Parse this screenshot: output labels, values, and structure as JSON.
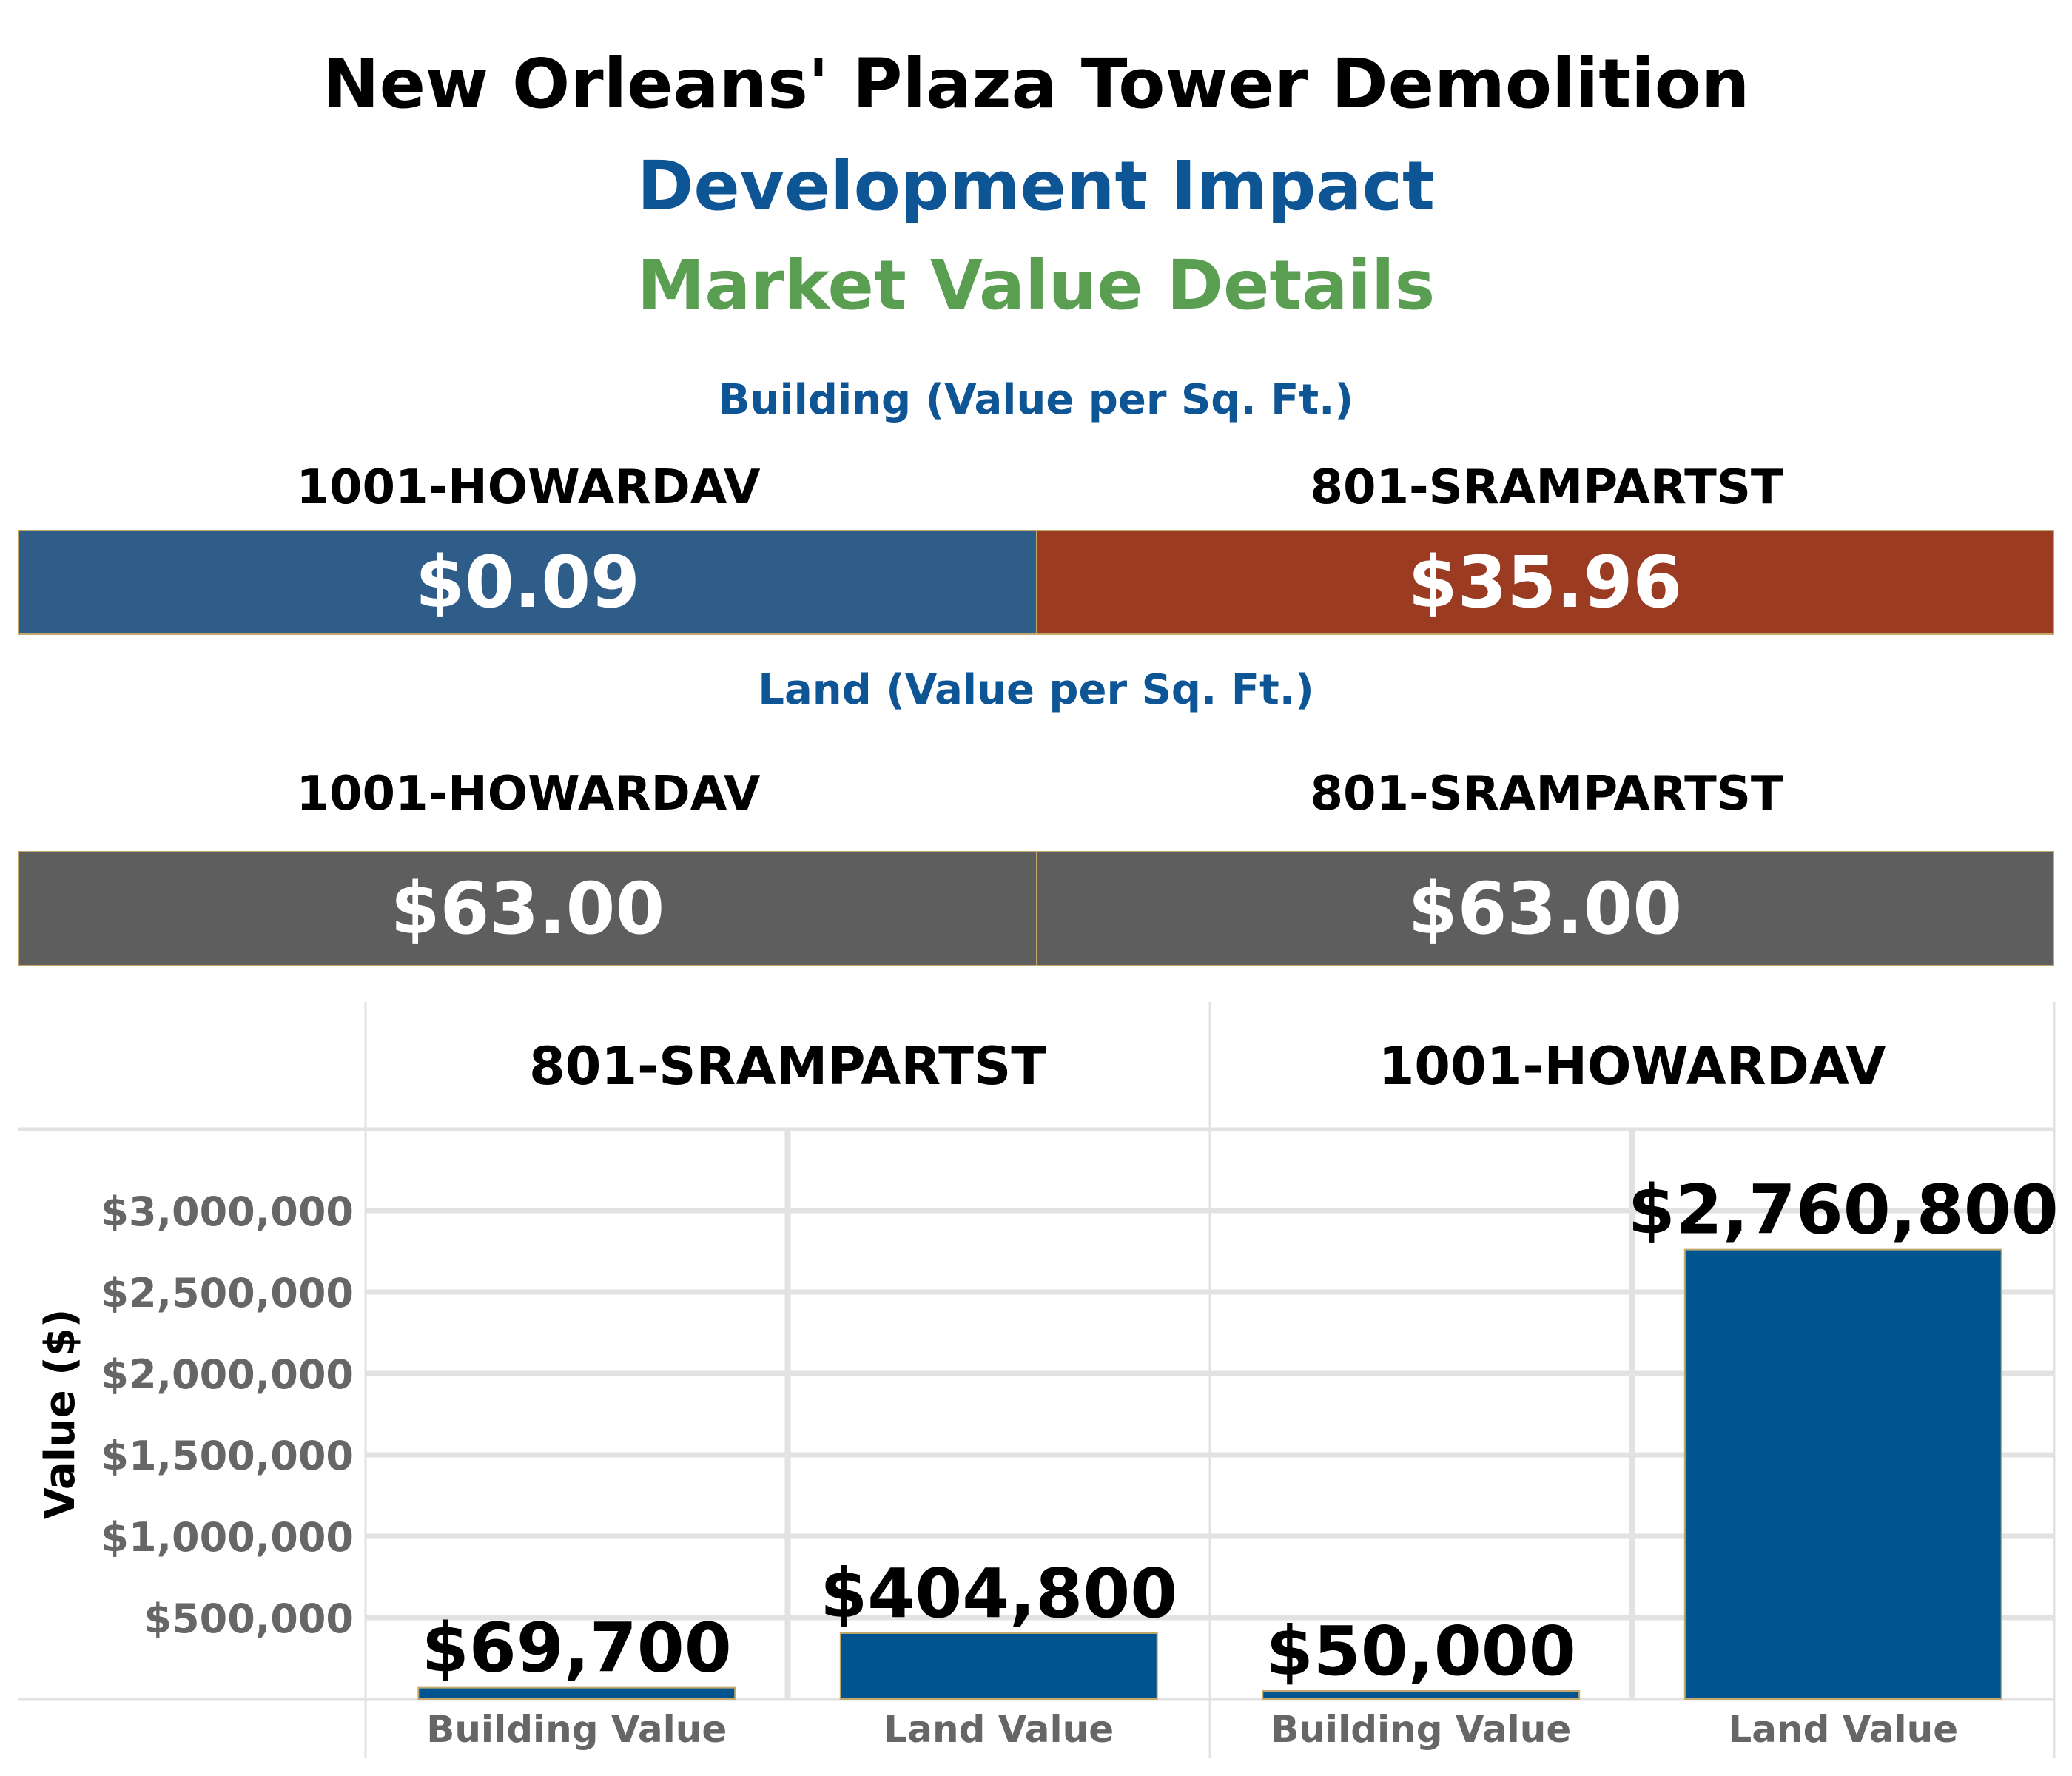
{
  "titles": {
    "main": "New Orleans' Plaza Tower Demolition",
    "sub1": "Development Impact",
    "sub2": "Market Value Details"
  },
  "building_section": {
    "title": "Building (Value per Sq. Ft.)",
    "left_label": "1001-HOWARDAV",
    "right_label": "801-SRAMPARTST",
    "left_value": "$0.09",
    "right_value": "$35.96"
  },
  "land_section": {
    "title": "Land (Value per Sq. Ft.)",
    "left_label": "1001-HOWARDAV",
    "right_label": "801-SRAMPARTST",
    "left_value": "$63.00",
    "right_value": "$63.00"
  },
  "colors": {
    "howard_building_tile": "#2e5d8a",
    "rampart_building_tile": "#9a3b22",
    "land_tile": "#5e5e5e",
    "bar_fill": "#00548f",
    "bar_border": "#c2a96b",
    "grid": "#e2e2e2",
    "tick_label": "#666666"
  },
  "chart_data": {
    "type": "bar",
    "ylabel": "Value ($)",
    "ylim": [
      0,
      3500000
    ],
    "yticks": [
      500000,
      1000000,
      1500000,
      2000000,
      2500000,
      3000000
    ],
    "ytick_labels": [
      "$500,000",
      "$1,000,000",
      "$1,500,000",
      "$2,000,000",
      "$2,500,000",
      "$3,000,000"
    ],
    "grid": true,
    "panels": [
      {
        "title": "801-SRAMPARTST",
        "categories": [
          "Building Value",
          "Land Value"
        ],
        "values": [
          69700,
          404800
        ],
        "labels": [
          "$69,700",
          "$404,800"
        ]
      },
      {
        "title": "1001-HOWARDAV",
        "categories": [
          "Building Value",
          "Land Value"
        ],
        "values": [
          50000,
          2760800
        ],
        "labels": [
          "$50,000",
          "$2,760,800"
        ]
      }
    ]
  }
}
